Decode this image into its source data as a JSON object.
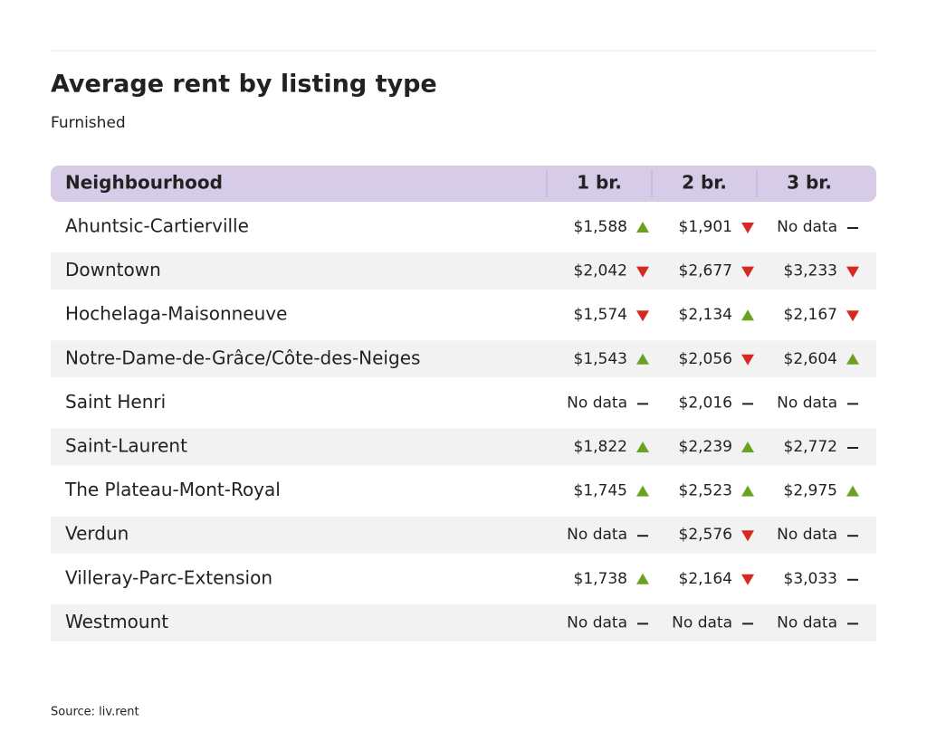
{
  "header": {
    "title": "Average rent by listing type",
    "subtitle": "Furnished"
  },
  "table": {
    "columns": [
      "Neighbourhood",
      "1 br.",
      "2 br.",
      "3 br."
    ],
    "rows": [
      {
        "name": "Ahuntsic-Cartierville",
        "cells": [
          {
            "text": "$1,588",
            "trend": "up"
          },
          {
            "text": "$1,901",
            "trend": "down"
          },
          {
            "text": "No data",
            "trend": "none"
          }
        ]
      },
      {
        "name": "Downtown",
        "cells": [
          {
            "text": "$2,042",
            "trend": "down"
          },
          {
            "text": "$2,677",
            "trend": "down"
          },
          {
            "text": "$3,233",
            "trend": "down"
          }
        ]
      },
      {
        "name": "Hochelaga-Maisonneuve",
        "cells": [
          {
            "text": "$1,574",
            "trend": "down"
          },
          {
            "text": "$2,134",
            "trend": "up"
          },
          {
            "text": "$2,167",
            "trend": "down"
          }
        ]
      },
      {
        "name": "Notre-Dame-de-Grâce/Côte-des-Neiges",
        "cells": [
          {
            "text": "$1,543",
            "trend": "up"
          },
          {
            "text": "$2,056",
            "trend": "down"
          },
          {
            "text": "$2,604",
            "trend": "up"
          }
        ]
      },
      {
        "name": "Saint Henri",
        "cells": [
          {
            "text": "No data",
            "trend": "none"
          },
          {
            "text": "$2,016",
            "trend": "none"
          },
          {
            "text": "No data",
            "trend": "none"
          }
        ]
      },
      {
        "name": "Saint-Laurent",
        "cells": [
          {
            "text": "$1,822",
            "trend": "up"
          },
          {
            "text": "$2,239",
            "trend": "up"
          },
          {
            "text": "$2,772",
            "trend": "none"
          }
        ]
      },
      {
        "name": "The Plateau-Mont-Royal",
        "cells": [
          {
            "text": "$1,745",
            "trend": "up"
          },
          {
            "text": "$2,523",
            "trend": "up"
          },
          {
            "text": "$2,975",
            "trend": "up"
          }
        ]
      },
      {
        "name": "Verdun",
        "cells": [
          {
            "text": "No data",
            "trend": "none"
          },
          {
            "text": "$2,576",
            "trend": "down"
          },
          {
            "text": "No data",
            "trend": "none"
          }
        ]
      },
      {
        "name": "Villeray-Parc-Extension",
        "cells": [
          {
            "text": "$1,738",
            "trend": "up"
          },
          {
            "text": "$2,164",
            "trend": "down"
          },
          {
            "text": "$3,033",
            "trend": "none"
          }
        ]
      },
      {
        "name": "Westmount",
        "cells": [
          {
            "text": "No data",
            "trend": "none"
          },
          {
            "text": "No data",
            "trend": "none"
          },
          {
            "text": "No data",
            "trend": "none"
          }
        ]
      }
    ]
  },
  "footer": {
    "source": "Source: liv.rent"
  }
}
